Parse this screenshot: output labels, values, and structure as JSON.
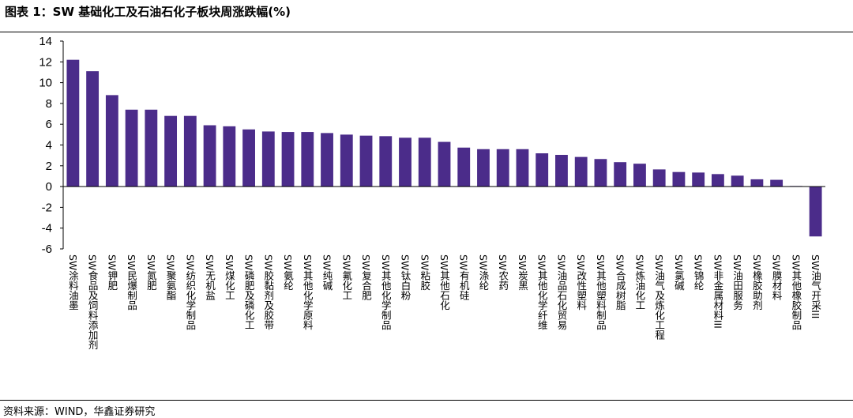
{
  "header": {
    "title": "图表 1：SW 基础化工及石油石化子板块周涨跌幅(%)"
  },
  "footer": {
    "source": "资料来源：WIND，华鑫证券研究"
  },
  "chart_data": {
    "type": "bar",
    "title": "图表 1：SW 基础化工及石油石化子板块周涨跌幅(%)",
    "xlabel": "",
    "ylabel": "",
    "ylim": [
      -6,
      14
    ],
    "yticks": [
      14,
      12,
      10,
      8,
      6,
      4,
      2,
      0,
      -2,
      -4,
      -6
    ],
    "grid": false,
    "bar_color": "#4B2C8A",
    "categories": [
      "SW涂料油墨",
      "SW食品及饲料添加剂",
      "SW钾肥",
      "SW民爆制品",
      "SW氮肥",
      "SW聚氨酯",
      "SW纺织化学制品",
      "SW无机盐",
      "SW煤化工",
      "SW磷肥及磷化工",
      "SW胶黏剂及胶带",
      "SW氨纶",
      "SW其他化学原料",
      "SW纯碱",
      "SW氟化工",
      "SW复合肥",
      "SW其他化学制品",
      "SW钛白粉",
      "SW粘胶",
      "SW其他石化",
      "SW有机硅",
      "SW涤纶",
      "SW农药",
      "SW炭黑",
      "SW其他化学纤维",
      "SW油品石化贸易",
      "SW改性塑料",
      "SW其他塑料制品",
      "SW合成树脂",
      "SW炼油化工",
      "SW油气及炼化工程",
      "SW氯碱",
      "SW锦纶",
      "SW非金属材料III",
      "SW油田服务",
      "SW橡胶助剂",
      "SW膜材料",
      "SW其他橡胶制品",
      "SW油气开采III"
    ],
    "values": [
      12.2,
      11.1,
      8.8,
      7.4,
      7.4,
      6.8,
      6.8,
      5.9,
      5.8,
      5.5,
      5.3,
      5.25,
      5.25,
      5.15,
      5.0,
      4.9,
      4.85,
      4.7,
      4.7,
      4.3,
      3.75,
      3.6,
      3.6,
      3.6,
      3.2,
      3.05,
      2.85,
      2.65,
      2.35,
      2.2,
      1.65,
      1.4,
      1.35,
      1.2,
      1.05,
      0.7,
      0.65,
      0.05,
      -4.8
    ]
  }
}
